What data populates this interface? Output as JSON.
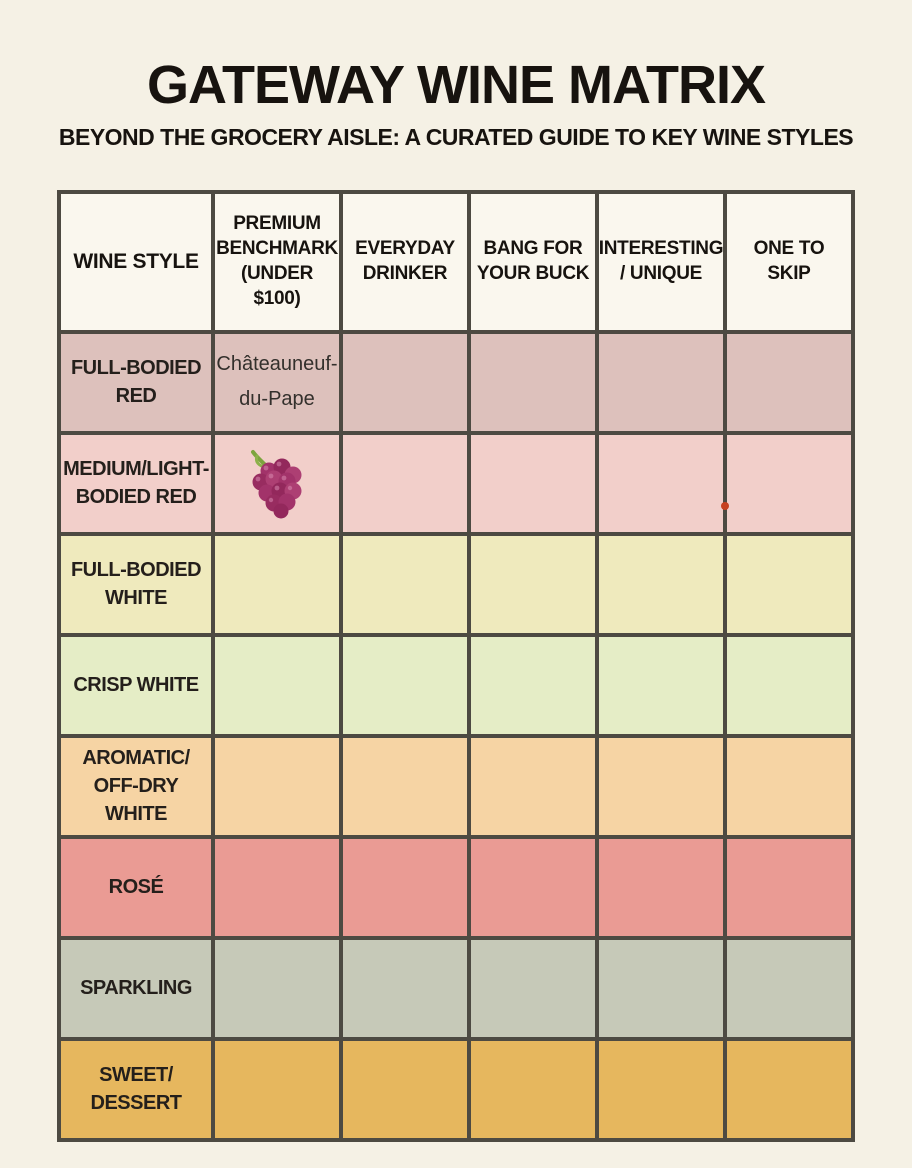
{
  "header": {
    "title": "GATEWAY WINE MATRIX",
    "subtitle": "BEYOND THE GROCERY AISLE: A CURATED GUIDE TO KEY WINE STYLES"
  },
  "colors": {
    "page_background": "#f5f1e5",
    "grid_line": "#4d4a42",
    "header_cell_background": "#faf7ee",
    "red_dot": "#c7401f",
    "grape_berry": "#a2336a",
    "grape_stem": "#7da43e"
  },
  "table": {
    "columns": [
      {
        "id": "wine-style",
        "label": "WINE STYLE"
      },
      {
        "id": "premium-benchmark",
        "label": "PREMIUM\nBENCHMARK\n(UNDER $100)"
      },
      {
        "id": "everyday-drinker",
        "label": "EVERYDAY\nDRINKER"
      },
      {
        "id": "bang-for-your-buck",
        "label": "BANG FOR\nYOUR BUCK"
      },
      {
        "id": "interesting-unique",
        "label": "INTERESTING\n/ UNIQUE"
      },
      {
        "id": "one-to-skip",
        "label": "ONE TO\nSKIP"
      }
    ],
    "rows": [
      {
        "id": "full-bodied-red",
        "label": "FULL-BODIED\nRED",
        "color": "#ddc1bc",
        "cells": [
          {
            "text": "Châteauneuf-\ndu-Pape"
          },
          null,
          null,
          null,
          null
        ]
      },
      {
        "id": "medium-light-bodied-red",
        "label": "MEDIUM/LIGHT-\nBODIED RED",
        "color": "#f2cfca",
        "cells": [
          {
            "icon": "grapes-icon"
          },
          null,
          null,
          null,
          {
            "marker": "red-dot"
          }
        ]
      },
      {
        "id": "full-bodied-white",
        "label": "FULL-BODIED\nWHITE",
        "color": "#efeabd",
        "cells": [
          null,
          null,
          null,
          null,
          null
        ]
      },
      {
        "id": "crisp-white",
        "label": "CRISP WHITE",
        "color": "#e5edc6",
        "cells": [
          null,
          null,
          null,
          null,
          null
        ]
      },
      {
        "id": "aromatic-off-dry-white",
        "label": "AROMATIC/\nOFF-DRY WHITE",
        "color": "#f6d4a4",
        "cells": [
          null,
          null,
          null,
          null,
          null
        ]
      },
      {
        "id": "rose",
        "label": "ROSÉ",
        "color": "#ea9b94",
        "cells": [
          null,
          null,
          null,
          null,
          null
        ]
      },
      {
        "id": "sparkling",
        "label": "SPARKLING",
        "color": "#c6c9b8",
        "cells": [
          null,
          null,
          null,
          null,
          null
        ]
      },
      {
        "id": "sweet-dessert",
        "label": "SWEET/\nDESSERT",
        "color": "#e6b75e",
        "cells": [
          null,
          null,
          null,
          null,
          null
        ]
      }
    ]
  },
  "chart_data": {
    "type": "table",
    "title": "GATEWAY WINE MATRIX",
    "subtitle": "BEYOND THE GROCERY AISLE: A CURATED GUIDE TO KEY WINE STYLES",
    "columns": [
      "WINE STYLE",
      "PREMIUM BENCHMARK (UNDER $100)",
      "EVERYDAY DRINKER",
      "BANG FOR YOUR BUCK",
      "INTERESTING / UNIQUE",
      "ONE TO SKIP"
    ],
    "rows": [
      [
        "FULL-BODIED RED",
        "Châteauneuf-du-Pape",
        "",
        "",
        "",
        ""
      ],
      [
        "MEDIUM/LIGHT-BODIED RED",
        "🍇",
        "",
        "",
        "",
        ""
      ],
      [
        "FULL-BODIED WHITE",
        "",
        "",
        "",
        "",
        ""
      ],
      [
        "CRISP WHITE",
        "",
        "",
        "",
        "",
        ""
      ],
      [
        "AROMATIC/OFF-DRY WHITE",
        "",
        "",
        "",
        "",
        ""
      ],
      [
        "ROSÉ",
        "",
        "",
        "",
        "",
        ""
      ],
      [
        "SPARKLING",
        "",
        "",
        "",
        "",
        ""
      ],
      [
        "SWEET/DESSERT",
        "",
        "",
        "",
        "",
        ""
      ]
    ],
    "layout_hints": {
      "row_band_colors": [
        "#ddc1bc",
        "#f2cfca",
        "#efeabd",
        "#e5edc6",
        "#f6d4a4",
        "#ea9b94",
        "#c6c9b8",
        "#e6b75e"
      ],
      "grid": true
    }
  }
}
